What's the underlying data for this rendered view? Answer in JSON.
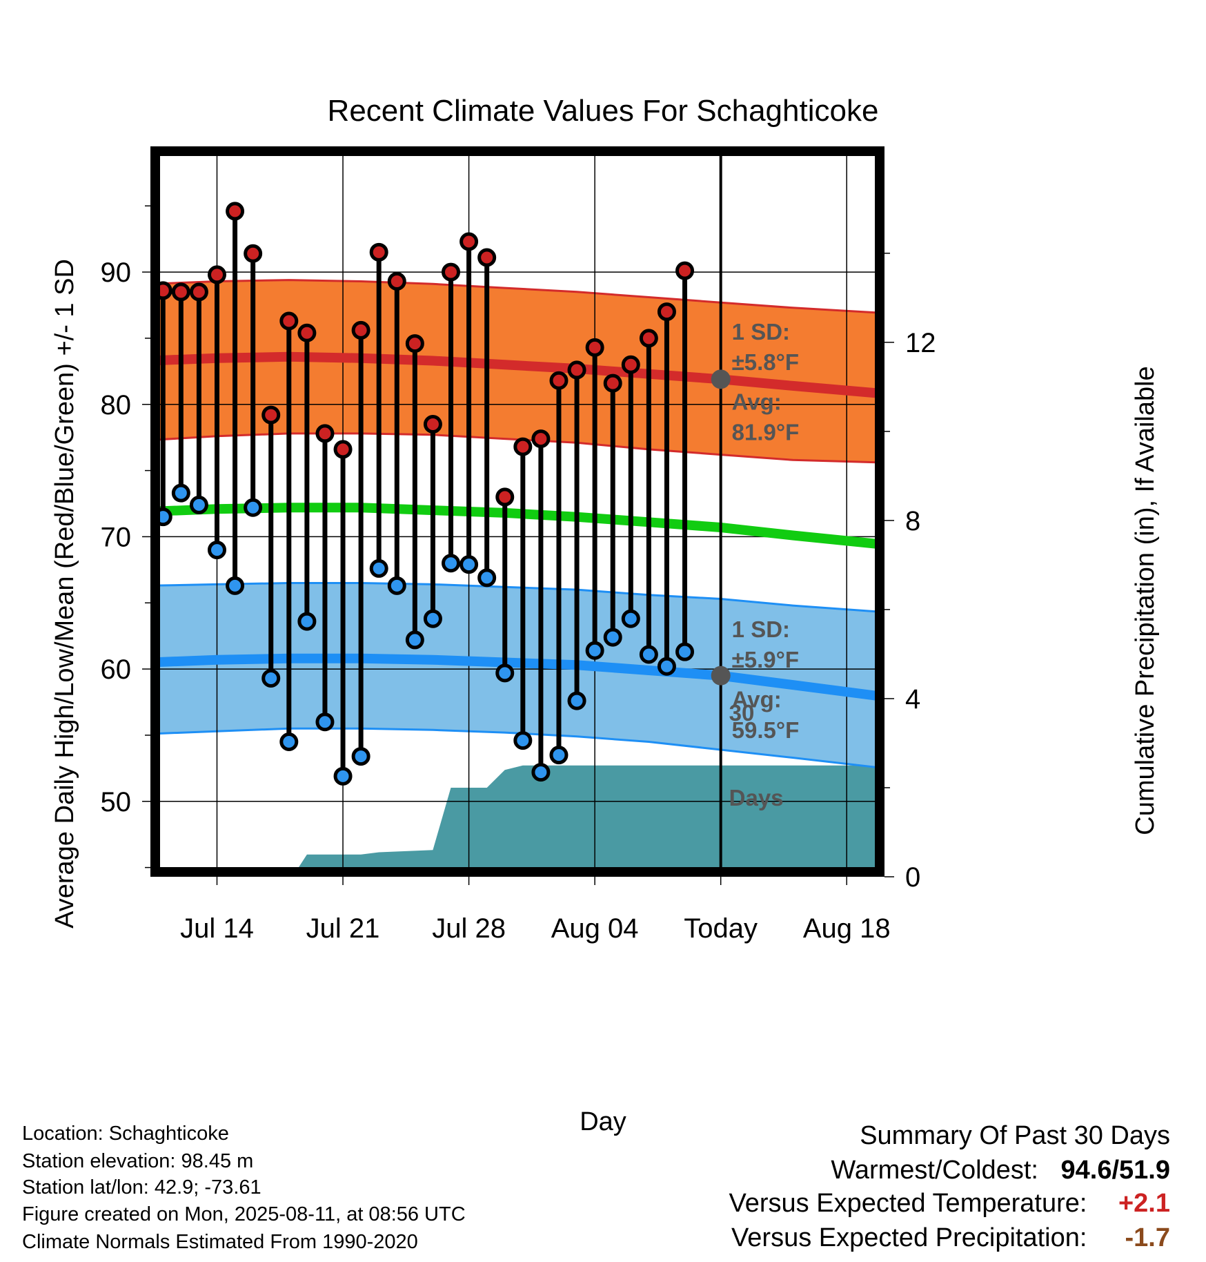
{
  "chart_data": {
    "type": "line",
    "title": "Recent Climate Values For Schaghticoke",
    "xlabel": "Day",
    "ylabel": "Average Daily High/Low/Mean (Red/Blue/Green) +/- 1 SD",
    "y2label": "Cumulative Precipitation (in), If Available",
    "x_start_day": 11,
    "x_tick_labels": [
      {
        "day": 14,
        "label": "Jul 14"
      },
      {
        "day": 21,
        "label": "Jul 21"
      },
      {
        "day": 28,
        "label": "Jul 28"
      },
      {
        "day": 35,
        "label": "Aug 04"
      },
      {
        "day": 42,
        "label": "Today"
      },
      {
        "day": 49,
        "label": "Aug 18"
      }
    ],
    "xlim": [
      10.3,
      51.1
    ],
    "ylim": [
      44.3,
      99.5
    ],
    "y_ticks": [
      50,
      60,
      70,
      80,
      90
    ],
    "y2lim": [
      0,
      16.4
    ],
    "y2_ticks": [
      0,
      4,
      8,
      12
    ],
    "grid": true,
    "today_day": 42,
    "daily_high": [
      88.6,
      88.5,
      88.5,
      89.8,
      94.6,
      91.4,
      79.2,
      86.3,
      85.4,
      77.8,
      76.6,
      85.6,
      91.5,
      89.3,
      84.6,
      78.5,
      90.0,
      92.3,
      91.1,
      73.0,
      76.8,
      77.4,
      81.8,
      82.6,
      84.3,
      81.6,
      83.0,
      85.0,
      87.0,
      90.1
    ],
    "daily_low": [
      71.5,
      73.3,
      72.4,
      69.0,
      66.3,
      72.2,
      59.3,
      54.5,
      63.6,
      56.0,
      51.9,
      53.4,
      67.6,
      66.3,
      62.2,
      63.8,
      68.0,
      67.9,
      66.9,
      59.7,
      54.6,
      52.2,
      53.5,
      57.6,
      61.4,
      62.4,
      63.8,
      61.1,
      60.2,
      61.3
    ],
    "normal_high": {
      "days": [
        10.3,
        14,
        18,
        22,
        26,
        30,
        34,
        38,
        42,
        46,
        51.1
      ],
      "mean": [
        83.3,
        83.5,
        83.6,
        83.5,
        83.3,
        83.0,
        82.7,
        82.3,
        81.9,
        81.4,
        80.8
      ],
      "upper": [
        89.1,
        89.3,
        89.4,
        89.3,
        89.1,
        88.8,
        88.5,
        88.1,
        87.7,
        87.3,
        86.9
      ],
      "lower": [
        77.3,
        77.6,
        77.8,
        77.8,
        77.7,
        77.4,
        77.1,
        76.6,
        76.2,
        75.8,
        75.6
      ]
    },
    "normal_low": {
      "days": [
        10.3,
        14,
        18,
        22,
        26,
        30,
        34,
        38,
        42,
        46,
        51.1
      ],
      "mean": [
        60.5,
        60.7,
        60.8,
        60.8,
        60.7,
        60.5,
        60.3,
        59.9,
        59.5,
        58.8,
        57.9
      ],
      "upper": [
        66.3,
        66.4,
        66.5,
        66.5,
        66.4,
        66.2,
        66.0,
        65.6,
        65.3,
        64.8,
        64.3
      ],
      "lower": [
        55.1,
        55.3,
        55.5,
        55.5,
        55.4,
        55.2,
        54.9,
        54.5,
        53.9,
        53.3,
        52.5
      ]
    },
    "normal_mean": {
      "days": [
        10.3,
        14,
        18,
        22,
        26,
        30,
        34,
        38,
        42,
        46,
        51.1
      ],
      "values": [
        71.9,
        72.1,
        72.2,
        72.2,
        72.0,
        71.8,
        71.5,
        71.1,
        70.7,
        70.1,
        69.4
      ]
    },
    "precip_cumulative": {
      "days": [
        18.2,
        19.0,
        22.0,
        23.0,
        26.0,
        27.0,
        29.0,
        30.0,
        31.0,
        51.1
      ],
      "values": [
        0,
        0.5,
        0.5,
        0.55,
        0.6,
        2.0,
        2.0,
        2.4,
        2.5,
        2.5
      ]
    },
    "annotations": {
      "high_sd_1": "1 SD:",
      "high_sd_2": "±5.8°F",
      "high_avg_1": "Avg:",
      "high_avg_2": "81.9°F",
      "low_sd_1": "1 SD:",
      "low_sd_2": "±5.9°F",
      "low_avg_1": "Avg:",
      "low_avg_2": "59.5°F",
      "precip_1": "30",
      "precip_2": "Days"
    },
    "colors": {
      "high_band": "#f47c30",
      "high_line": "#d32b2b",
      "high_marker": "#cc2222",
      "low_band": "#80bfe8",
      "low_line": "#1e8ff5",
      "low_marker": "#2f95ef",
      "mean_line": "#11cc11",
      "precip": "#4a9aa3",
      "today_marker": "#555555"
    }
  },
  "info": {
    "location": "Location: Schaghticoke",
    "elevation": "Station elevation: 98.45 m",
    "latlon": "Station lat/lon: 42.9; -73.61",
    "created": "Figure created on Mon, 2025-08-11, at 08:56 UTC",
    "normals": "Climate Normals Estimated From 1990-2020"
  },
  "summary": {
    "heading": "Summary Of Past 30 Days",
    "warm_cold_label": "Warmest/Coldest:",
    "warm_cold_value": "94.6/51.9",
    "temp_label": "Versus Expected Temperature:",
    "temp_value": "+2.1",
    "precip_label": "Versus Expected Precipitation:",
    "precip_value": "-1.7",
    "temp_color": "#cc2222",
    "precip_color": "#8b4a1c"
  }
}
